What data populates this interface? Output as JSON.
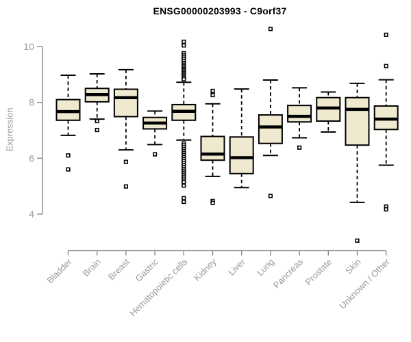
{
  "chart_data": {
    "type": "boxplot",
    "title": "ENSG00000203993 - C9orf37",
    "ylabel": "Expression",
    "xlabel": "",
    "ylim": [
      4,
      10
    ],
    "yticks": [
      4,
      6,
      8,
      10
    ],
    "grid": false,
    "legend": false,
    "colors": {
      "box_fill": "#EFE9D0",
      "box_border": "#000000",
      "median": "#000000",
      "whisker": "#000000",
      "axis_line": "#7f7f7f",
      "tick_label": "#999999",
      "title": "#000000",
      "background": "#ffffff"
    },
    "categories": [
      "Bladder",
      "Brain",
      "Breast",
      "Gastric",
      "Hematopoietic cells",
      "Kidney",
      "Liver",
      "Lung",
      "Pancreas",
      "Prostate",
      "Skin",
      "Unknown / Other"
    ],
    "series": [
      {
        "name": "Bladder",
        "whisker_low": 6.82,
        "q1": 7.36,
        "median": 7.67,
        "q3": 8.1,
        "whisker_high": 8.97,
        "outliers": [
          6.1,
          5.6
        ]
      },
      {
        "name": "Brain",
        "whisker_low": 7.4,
        "q1": 8.02,
        "median": 8.28,
        "q3": 8.5,
        "whisker_high": 9.02,
        "outliers": [
          7.33,
          7.01
        ]
      },
      {
        "name": "Breast",
        "whisker_low": 6.3,
        "q1": 7.49,
        "median": 8.17,
        "q3": 8.47,
        "whisker_high": 9.17,
        "outliers": [
          5.87,
          4.99
        ]
      },
      {
        "name": "Gastric",
        "whisker_low": 6.49,
        "q1": 7.05,
        "median": 7.26,
        "q3": 7.46,
        "whisker_high": 7.69,
        "outliers": [
          6.14
        ]
      },
      {
        "name": "Hematopoietic cells",
        "whisker_low": 6.65,
        "q1": 7.36,
        "median": 7.68,
        "q3": 7.92,
        "whisker_high": 8.72,
        "outliers": [
          10.17,
          10.04,
          9.76,
          9.68,
          9.61,
          9.54,
          9.47,
          9.41,
          9.35,
          9.29,
          9.24,
          9.19,
          9.14,
          9.09,
          9.04,
          8.99,
          8.94,
          8.89,
          8.83,
          6.53,
          6.46,
          6.39,
          6.32,
          6.25,
          6.18,
          6.11,
          6.04,
          5.97,
          5.9,
          5.83,
          5.76,
          5.69,
          5.62,
          5.55,
          5.48,
          5.41,
          5.34,
          5.27,
          5.2,
          5.15,
          5.02,
          4.57,
          4.44
        ]
      },
      {
        "name": "Kidney",
        "whisker_low": 5.35,
        "q1": 5.93,
        "median": 6.15,
        "q3": 6.78,
        "whisker_high": 7.95,
        "outliers": [
          8.41,
          8.26,
          4.47,
          4.4
        ]
      },
      {
        "name": "Liver",
        "whisker_low": 4.95,
        "q1": 5.45,
        "median": 6.02,
        "q3": 6.76,
        "whisker_high": 8.48,
        "outliers": []
      },
      {
        "name": "Lung",
        "whisker_low": 6.1,
        "q1": 6.53,
        "median": 7.12,
        "q3": 7.55,
        "whisker_high": 8.8,
        "outliers": [
          10.63,
          4.65
        ]
      },
      {
        "name": "Pancreas",
        "whisker_low": 6.73,
        "q1": 7.3,
        "median": 7.5,
        "q3": 7.89,
        "whisker_high": 8.52,
        "outliers": [
          6.38
        ]
      },
      {
        "name": "Prostate",
        "whisker_low": 6.94,
        "q1": 7.33,
        "median": 7.8,
        "q3": 8.17,
        "whisker_high": 8.37,
        "outliers": []
      },
      {
        "name": "Skin",
        "whisker_low": 4.42,
        "q1": 6.47,
        "median": 7.75,
        "q3": 8.17,
        "whisker_high": 8.68,
        "outliers": [
          3.05
        ]
      },
      {
        "name": "Unknown / Other",
        "whisker_low": 5.75,
        "q1": 7.03,
        "median": 7.4,
        "q3": 7.87,
        "whisker_high": 8.81,
        "outliers": [
          10.42,
          9.3,
          4.27,
          4.17
        ]
      }
    ]
  }
}
